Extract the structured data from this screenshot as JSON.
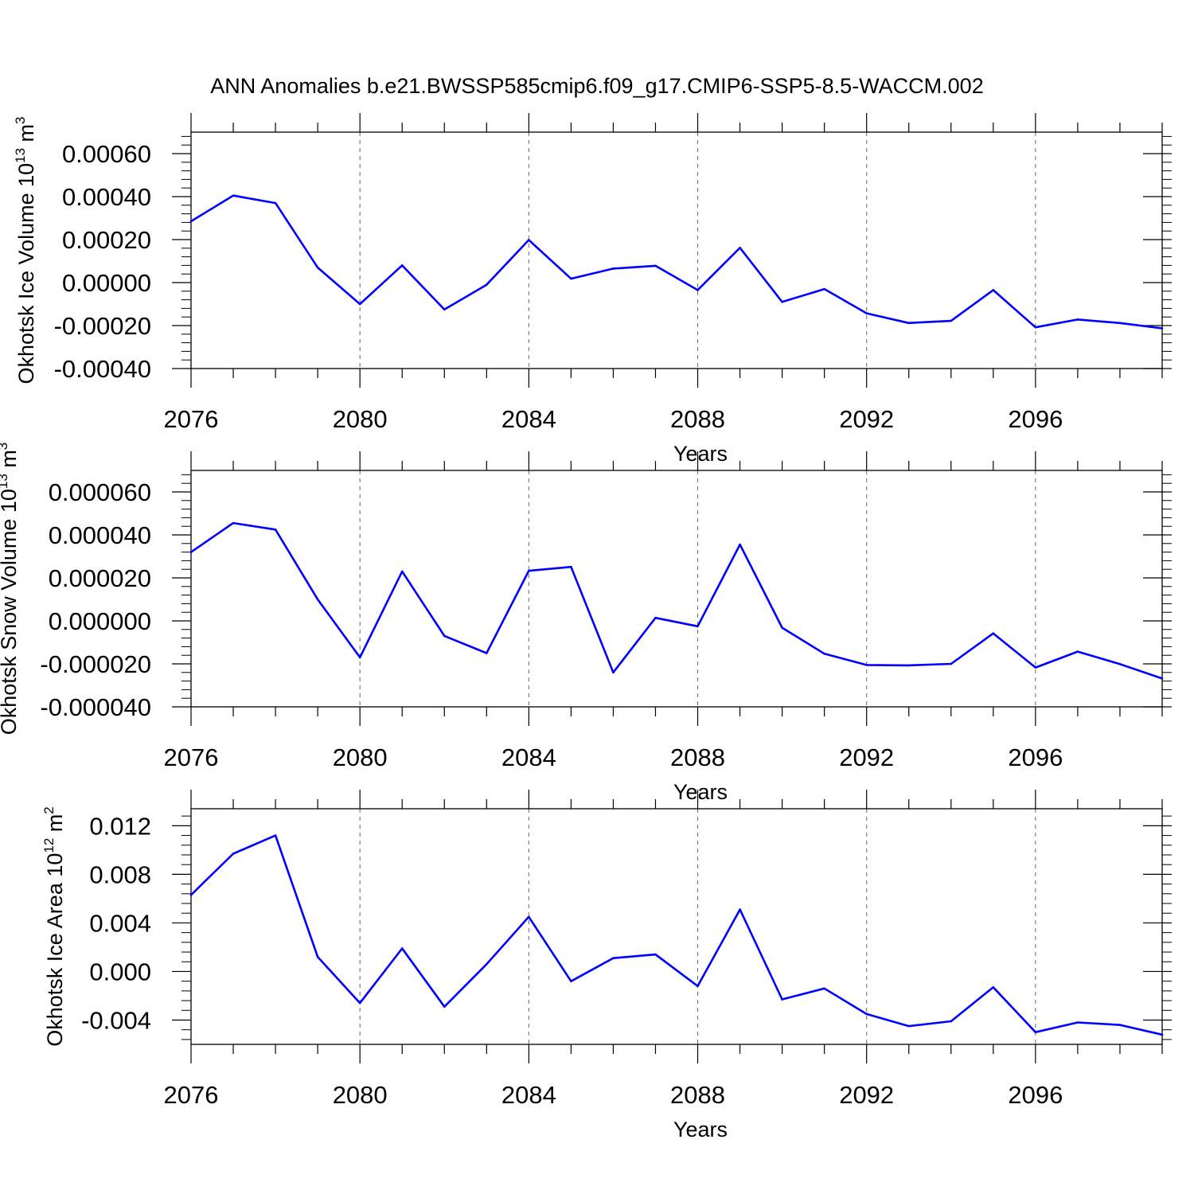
{
  "figure_title": "ANN Anomalies b.e21.BWSSP585cmip6.f09_g17.CMIP6-SSP5-8.5-WACCM.002",
  "line_color": "#0000ff",
  "chart_data": [
    {
      "type": "line",
      "ylabel": "Okhotsk Ice Volume 10",
      "ylabel_exp": "13",
      "ylabel_unit": " m",
      "ylabel_unit_exp": "3",
      "xlabel": "Years",
      "xlim": [
        2076,
        2099
      ],
      "ylim": [
        -0.0004,
        0.0007
      ],
      "ytick_values": [
        0.0006,
        0.0004,
        0.0002,
        0.0,
        -0.0002,
        -0.0004
      ],
      "ytick_labels": [
        "0.00060",
        "0.00040",
        "0.00020",
        "0.00000",
        "-0.00020",
        "-0.00040"
      ],
      "xtick_values": [
        2076,
        2080,
        2084,
        2088,
        2092,
        2096
      ],
      "xtick_labels": [
        "2076",
        "2080",
        "2084",
        "2088",
        "2092",
        "2096"
      ],
      "x": [
        2076,
        2077,
        2078,
        2079,
        2080,
        2081,
        2082,
        2083,
        2084,
        2085,
        2086,
        2087,
        2088,
        2089,
        2090,
        2091,
        2092,
        2093,
        2094,
        2095,
        2096,
        2097,
        2098,
        2099
      ],
      "y": [
        0.000285,
        0.000405,
        0.00037,
        7e-05,
        -0.0001,
        8e-05,
        -0.000125,
        -1e-05,
        0.000198,
        1.8e-05,
        6.5e-05,
        7.8e-05,
        -3.5e-05,
        0.000162,
        -9e-05,
        -3e-05,
        -0.000143,
        -0.000188,
        -0.000178,
        -3.5e-05,
        -0.000208,
        -0.000172,
        -0.000188,
        -0.000213
      ]
    },
    {
      "type": "line",
      "ylabel": "Okhotsk Snow Volume 10",
      "ylabel_exp": "13",
      "ylabel_unit": " m",
      "ylabel_unit_exp": "3",
      "xlabel": "Years",
      "xlim": [
        2076,
        2099
      ],
      "ylim": [
        -4e-05,
        7e-05
      ],
      "ytick_values": [
        6e-05,
        4e-05,
        2e-05,
        0.0,
        -2e-05,
        -4e-05
      ],
      "ytick_labels": [
        "0.000060",
        "0.000040",
        "0.000020",
        "0.000000",
        "-0.000020",
        "-0.000040"
      ],
      "xtick_values": [
        2076,
        2080,
        2084,
        2088,
        2092,
        2096
      ],
      "xtick_labels": [
        "2076",
        "2080",
        "2084",
        "2088",
        "2092",
        "2096"
      ],
      "x": [
        2076,
        2077,
        2078,
        2079,
        2080,
        2081,
        2082,
        2083,
        2084,
        2085,
        2086,
        2087,
        2088,
        2089,
        2090,
        2091,
        2092,
        2093,
        2094,
        2095,
        2096,
        2097,
        2098,
        2099
      ],
      "y": [
        3.2e-05,
        4.55e-05,
        4.25e-05,
        1e-05,
        -1.7e-05,
        2.3e-05,
        -7e-06,
        -1.5e-05,
        2.33e-05,
        2.51e-05,
        -2.4e-05,
        1.4e-06,
        -2.5e-06,
        3.55e-05,
        -3.2e-06,
        -1.53e-05,
        -2.05e-05,
        -2.07e-05,
        -2e-05,
        -5.8e-06,
        -2.17e-05,
        -1.43e-05,
        -2.01e-05,
        -2.68e-05
      ]
    },
    {
      "type": "line",
      "ylabel": "Okhotsk Ice Area 10",
      "ylabel_exp": "12",
      "ylabel_unit": " m",
      "ylabel_unit_exp": "2",
      "xlabel": "Years",
      "xlim": [
        2076,
        2099
      ],
      "ylim": [
        -0.006,
        0.0134
      ],
      "ytick_values": [
        0.012,
        0.008,
        0.004,
        0.0,
        -0.004
      ],
      "ytick_labels": [
        "0.012",
        "0.008",
        "0.004",
        "0.000",
        "-0.004"
      ],
      "xtick_values": [
        2076,
        2080,
        2084,
        2088,
        2092,
        2096
      ],
      "xtick_labels": [
        "2076",
        "2080",
        "2084",
        "2088",
        "2092",
        "2096"
      ],
      "x": [
        2076,
        2077,
        2078,
        2079,
        2080,
        2081,
        2082,
        2083,
        2084,
        2085,
        2086,
        2087,
        2088,
        2089,
        2090,
        2091,
        2092,
        2093,
        2094,
        2095,
        2096,
        2097,
        2098,
        2099
      ],
      "y": [
        0.0063,
        0.0097,
        0.0112,
        0.0012,
        -0.0026,
        0.0019,
        -0.0029,
        0.0006,
        0.0045,
        -0.0008,
        0.0011,
        0.0014,
        -0.0012,
        0.0051,
        -0.0023,
        -0.0014,
        -0.0035,
        -0.0045,
        -0.0041,
        -0.0013,
        -0.005,
        -0.0042,
        -0.0044,
        -0.0052
      ]
    }
  ]
}
